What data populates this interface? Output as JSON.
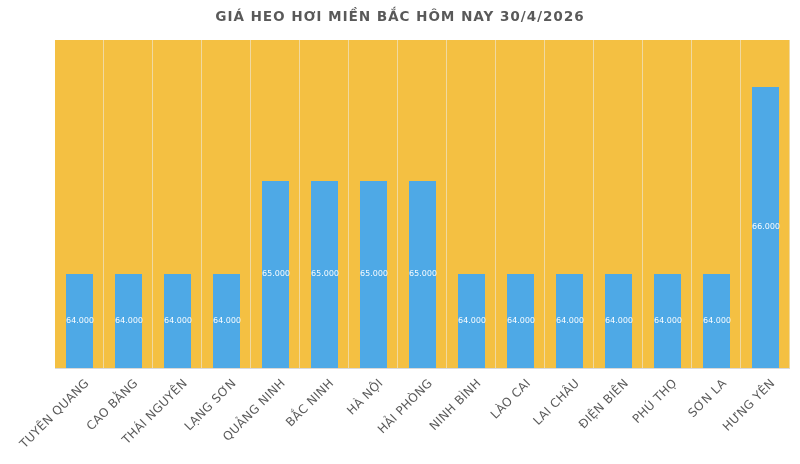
{
  "chart_data": {
    "type": "bar",
    "title": "GIÁ HEO HƠI MIỀN BẮC HÔM NAY 30/4/2026",
    "xlabel": "",
    "ylabel": "",
    "ylim": [
      63,
      66.5
    ],
    "grid": false,
    "legend": null,
    "categories": [
      "TUYÊN QUANG",
      "CAO BẰNG",
      "THÁI NGUYÊN",
      "LẠNG SƠN",
      "QUẢNG NINH",
      "BẮC NINH",
      "HÀ NỘI",
      "HẢI PHÒNG",
      "NINH BÌNH",
      "LÀO CAI",
      "LAI CHÂU",
      "ĐIỆN BIÊN",
      "PHÚ THỌ",
      "SƠN LA",
      "HƯNG YÊN"
    ],
    "values": [
      64000,
      64000,
      64000,
      64000,
      65000,
      65000,
      65000,
      65000,
      64000,
      64000,
      64000,
      64000,
      64000,
      64000,
      66000
    ],
    "data_labels": [
      "64.000",
      "64.000",
      "64.000",
      "64.000",
      "65.000",
      "65.000",
      "65.000",
      "65.000",
      "64.000",
      "64.000",
      "64.000",
      "64.000",
      "64.000",
      "64.000",
      "66.000"
    ],
    "colors": {
      "bar": "#4ea9e6",
      "plot_background": "#f4c042",
      "title": "#595959"
    }
  }
}
